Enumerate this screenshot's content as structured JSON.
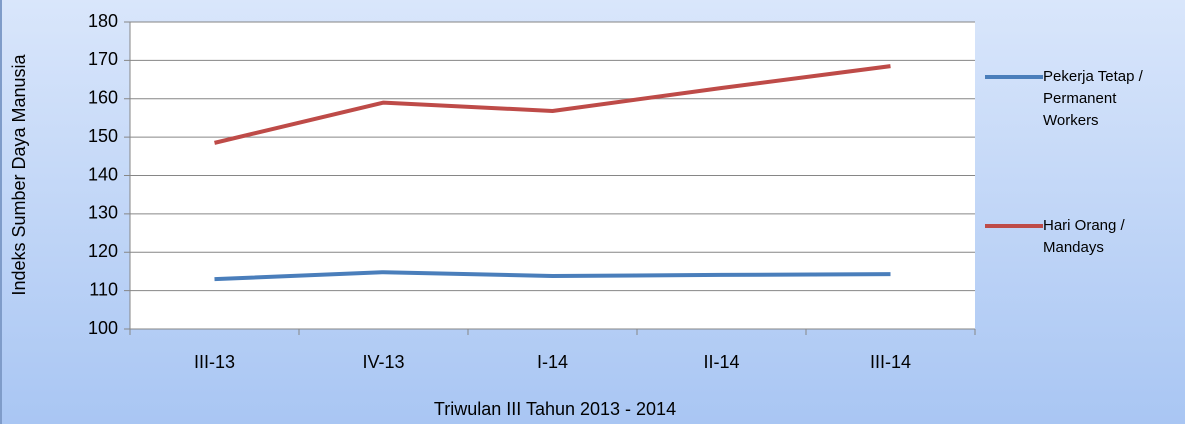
{
  "chart_data": {
    "type": "line",
    "x_label": "Triwulan III Tahun 2013 - 2014",
    "y_label": "Indeks Sumber Daya Manusia",
    "categories": [
      "III-13",
      "IV-13",
      "I-14",
      "II-14",
      "III-14"
    ],
    "series": [
      {
        "name": "Pekerja Tetap / Permanent Workers",
        "color": "#4a7ebb",
        "values": [
          113,
          114.8,
          113.8,
          114.1,
          114.3
        ]
      },
      {
        "name": "Hari Orang / Mandays",
        "color": "#be4b48",
        "values": [
          148.5,
          159,
          156.8,
          162.8,
          168.5
        ]
      }
    ],
    "ylim": [
      100,
      180
    ],
    "yticks": [
      100,
      110,
      120,
      130,
      140,
      150,
      160,
      170,
      180
    ],
    "grid": true
  }
}
